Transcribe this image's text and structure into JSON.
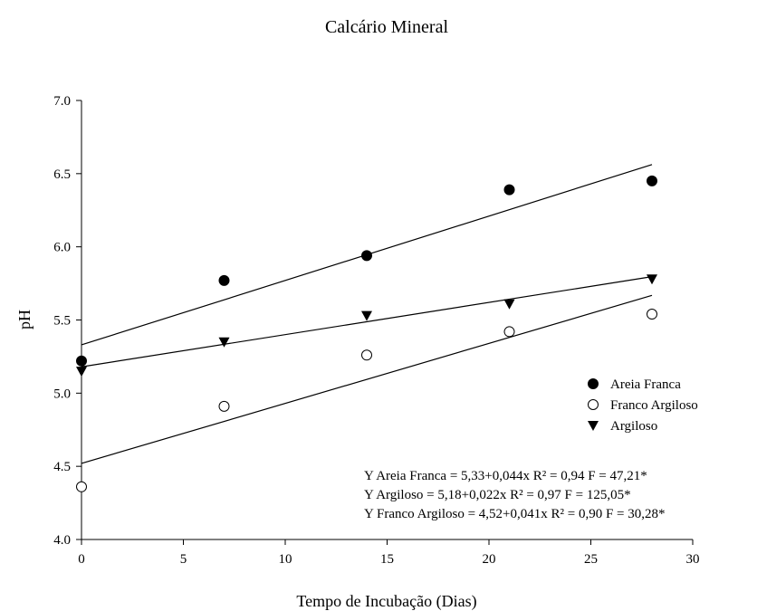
{
  "chart_data": {
    "type": "scatter",
    "title": "Calcário Mineral",
    "xlabel": "Tempo de Incubação (Dias)",
    "ylabel": "pH",
    "xlim": [
      0,
      30
    ],
    "ylim": [
      4.0,
      7.0
    ],
    "xticks": [
      0,
      5,
      10,
      15,
      20,
      25,
      30
    ],
    "xtick_labels": [
      "0",
      "5",
      "10",
      "15",
      "20",
      "25",
      "30"
    ],
    "yticks": [
      4.0,
      4.5,
      5.0,
      5.5,
      6.0,
      6.5,
      7.0
    ],
    "ytick_labels": [
      "4.0",
      "4.5",
      "5.0",
      "5.5",
      "6.0",
      "6.5",
      "7.0"
    ],
    "grid": false,
    "legend_position": "right",
    "series": [
      {
        "name": "Areia Franca",
        "marker": "filled-circle",
        "x": [
          0,
          7,
          14,
          21,
          28
        ],
        "y": [
          5.22,
          5.77,
          5.94,
          6.39,
          6.45
        ],
        "fit": {
          "intercept": 5.33,
          "slope": 0.044
        }
      },
      {
        "name": "Franco Argiloso",
        "marker": "open-circle",
        "x": [
          0,
          7,
          14,
          21,
          28
        ],
        "y": [
          4.36,
          4.91,
          5.26,
          5.42,
          5.54
        ],
        "fit": {
          "intercept": 4.52,
          "slope": 0.041
        }
      },
      {
        "name": "Argiloso",
        "marker": "filled-triangle-down",
        "x": [
          0,
          7,
          14,
          21,
          28
        ],
        "y": [
          5.15,
          5.35,
          5.53,
          5.61,
          5.78
        ],
        "fit": {
          "intercept": 5.18,
          "slope": 0.022
        }
      }
    ],
    "annotations": [
      "Y Areia Franca = 5,33+0,044x  R² = 0,94  F = 47,21*",
      "Y Argiloso = 5,18+0,022x  R² = 0,97  F = 125,05*",
      "Y Franco Argiloso = 4,52+0,041x  R² = 0,90  F = 30,28*"
    ]
  }
}
